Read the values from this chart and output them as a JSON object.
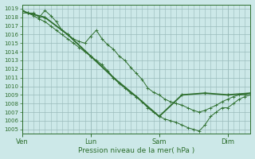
{
  "xlabel": "Pression niveau de la mer( hPa )",
  "bg_color": "#cce8e8",
  "grid_color": "#99bbbb",
  "line_color": "#2d6e2d",
  "ylim": [
    1004.5,
    1019.5
  ],
  "yticks": [
    1005,
    1006,
    1007,
    1008,
    1009,
    1010,
    1011,
    1012,
    1013,
    1014,
    1015,
    1016,
    1017,
    1018,
    1019
  ],
  "xlim": [
    0,
    240
  ],
  "xtick_pos": [
    0,
    72,
    144,
    216
  ],
  "xtick_labels": [
    "Ven",
    "Lun",
    "Sam",
    "Dim"
  ],
  "series1_x": [
    0,
    12,
    18,
    24,
    30,
    36,
    42,
    48,
    54,
    60,
    66,
    72,
    78,
    84,
    90,
    96,
    102,
    108,
    114,
    120,
    126,
    132,
    138,
    144,
    150,
    156,
    162,
    168,
    174,
    180,
    186,
    192,
    198,
    204,
    210,
    216,
    222,
    228,
    234,
    240
  ],
  "series1_y": [
    1018.5,
    1018.5,
    1018.0,
    1018.8,
    1018.2,
    1017.5,
    1016.5,
    1016.0,
    1015.5,
    1015.2,
    1015.0,
    1015.8,
    1016.5,
    1015.5,
    1014.8,
    1014.3,
    1013.5,
    1013.0,
    1012.2,
    1011.5,
    1010.8,
    1009.8,
    1009.3,
    1009.0,
    1008.5,
    1008.2,
    1008.0,
    1007.8,
    1007.5,
    1007.2,
    1007.0,
    1007.2,
    1007.5,
    1007.8,
    1008.2,
    1008.5,
    1008.8,
    1009.0,
    1009.0,
    1009.2
  ],
  "series2_x": [
    0,
    6,
    12,
    18,
    24,
    30,
    36,
    42,
    48,
    54,
    60,
    66,
    72,
    78,
    84,
    90,
    96,
    102,
    108,
    114,
    120,
    126,
    132,
    138,
    144,
    150,
    156,
    162,
    168,
    174,
    180,
    186,
    192,
    198,
    204,
    210,
    216,
    222,
    228,
    234,
    240
  ],
  "series2_y": [
    1018.8,
    1018.5,
    1018.2,
    1017.8,
    1017.5,
    1017.0,
    1016.5,
    1016.0,
    1015.5,
    1015.0,
    1014.5,
    1014.0,
    1013.5,
    1013.0,
    1012.5,
    1011.8,
    1011.0,
    1010.3,
    1009.8,
    1009.2,
    1008.8,
    1008.2,
    1007.5,
    1007.0,
    1006.5,
    1006.2,
    1006.0,
    1005.8,
    1005.5,
    1005.2,
    1005.0,
    1004.8,
    1005.5,
    1006.5,
    1007.0,
    1007.5,
    1007.5,
    1008.0,
    1008.5,
    1008.8,
    1009.0
  ],
  "series3_x": [
    0,
    6,
    24,
    48,
    72,
    96,
    120,
    144,
    168,
    192,
    216,
    240
  ],
  "series3_y": [
    1018.8,
    1018.5,
    1018.0,
    1016.0,
    1013.5,
    1011.0,
    1008.8,
    1006.5,
    1009.0,
    1009.2,
    1009.0,
    1009.2
  ]
}
